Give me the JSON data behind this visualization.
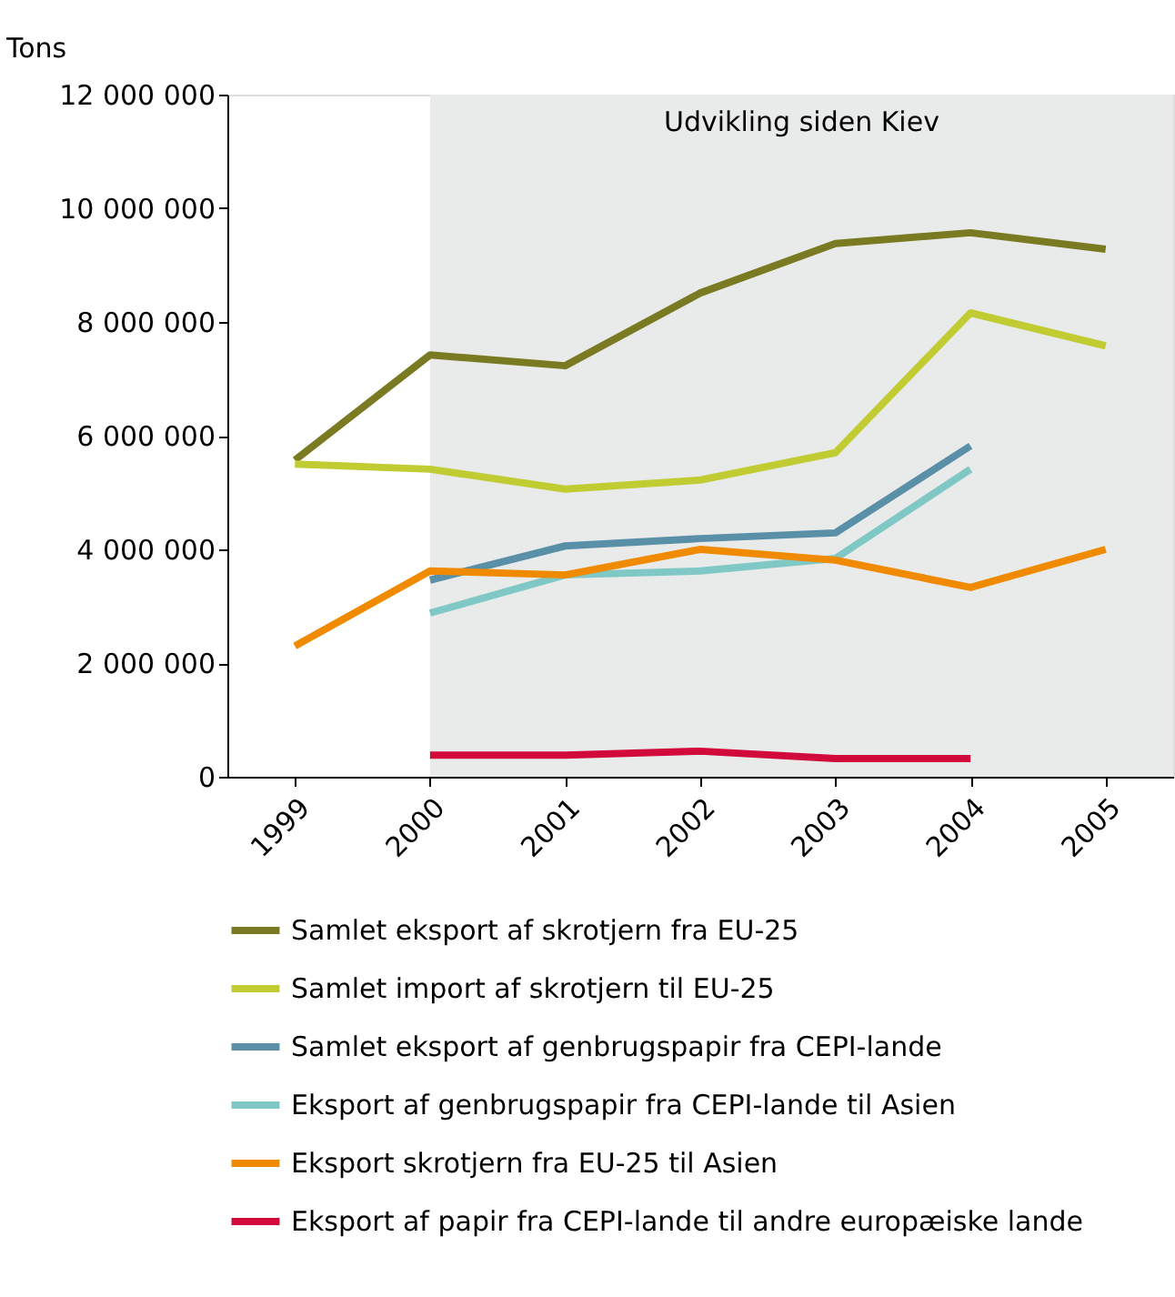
{
  "chart_data": {
    "type": "line",
    "ylabel": "Tons",
    "x": [
      1999,
      2000,
      2001,
      2002,
      2003,
      2004,
      2005
    ],
    "xlim": [
      1998.5,
      2005.5
    ],
    "xticks": [
      1999,
      2000,
      2001,
      2002,
      2003,
      2004,
      2005
    ],
    "ylim": [
      0,
      12000000
    ],
    "yticks": [
      {
        "value": 0,
        "label": "0"
      },
      {
        "value": 2000000,
        "label": "2 000 000"
      },
      {
        "value": 4000000,
        "label": "4 000 000"
      },
      {
        "value": 6000000,
        "label": "6 000 000"
      },
      {
        "value": 8000000,
        "label": "8 000 000"
      },
      {
        "value": 10000000,
        "label": "10 000 000"
      },
      {
        "value": 12000000,
        "label": "12 000 000"
      }
    ],
    "series": [
      {
        "name": "Samlet eksport af skrotjern fra EU-25",
        "color": "#7a7a22",
        "values": [
          5570000,
          7420000,
          7230000,
          8510000,
          9380000,
          9570000,
          9280000
        ]
      },
      {
        "name": "Samlet import af skrotjern til EU-25",
        "color": "#c1cc32",
        "values": [
          5500000,
          5410000,
          5060000,
          5220000,
          5700000,
          8160000,
          7580000
        ]
      },
      {
        "name": "Samlet eksport af genbrugspapir fra CEPI-lande",
        "color": "#5a8fa8",
        "values": [
          null,
          3460000,
          4060000,
          4190000,
          4290000,
          5820000,
          null
        ]
      },
      {
        "name": "Eksport af genbrugspapir fra CEPI-lande til Asien",
        "color": "#80c8c5",
        "values": [
          null,
          2880000,
          3550000,
          3620000,
          3840000,
          5410000,
          null
        ]
      },
      {
        "name": "Eksport skrotjern fra EU-25 til Asien",
        "color": "#f08a00",
        "values": [
          2300000,
          3620000,
          3550000,
          4000000,
          3810000,
          3330000,
          4000000
        ]
      },
      {
        "name": "Eksport af papir fra CEPI-lande til andre europæiske lande",
        "color": "#d20a3c",
        "values": [
          null,
          380000,
          380000,
          450000,
          320000,
          320000,
          null
        ]
      }
    ],
    "bands": [
      {
        "axis": "x",
        "from": 2000,
        "to": 2005.5,
        "label": "Udvikling siden Kiev",
        "color": "#e9ebea"
      }
    ],
    "grid": false,
    "legend": "bottom",
    "line_style": "solid",
    "marker": "none"
  }
}
